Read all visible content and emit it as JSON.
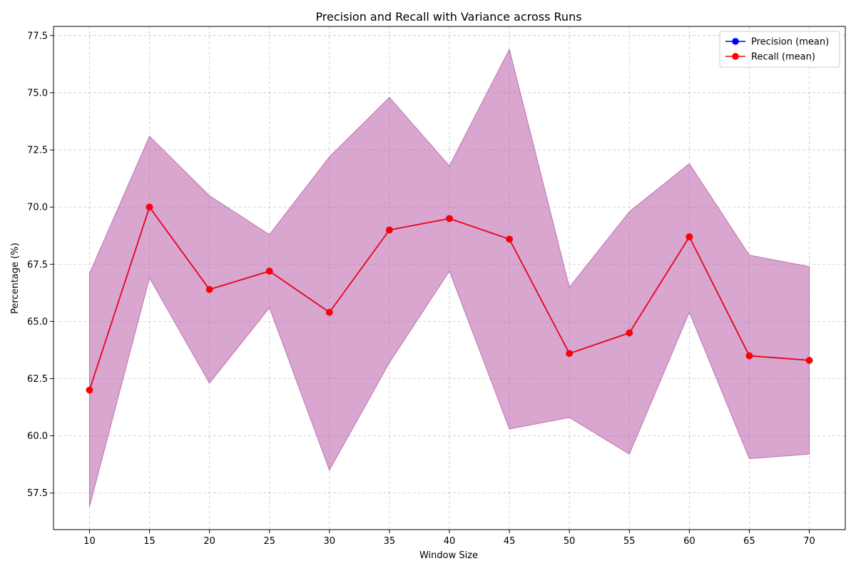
{
  "chart_data": {
    "type": "line",
    "title": "Precision and Recall with Variance across Runs",
    "xlabel": "Window Size",
    "ylabel": "Percentage (%)",
    "x": [
      10,
      15,
      20,
      25,
      30,
      35,
      40,
      45,
      50,
      55,
      60,
      65,
      70
    ],
    "xticks": [
      "10",
      "15",
      "20",
      "25",
      "30",
      "35",
      "40",
      "45",
      "50",
      "55",
      "60",
      "65",
      "70"
    ],
    "yticks": [
      "57.5",
      "60.0",
      "62.5",
      "65.0",
      "67.5",
      "70.0",
      "72.5",
      "75.0",
      "77.5"
    ],
    "xlim": [
      7,
      73
    ],
    "ylim": [
      55.9,
      77.9
    ],
    "grid": true,
    "legend_position": "top-right",
    "series": [
      {
        "name": "Precision (mean)",
        "color": "#0000ff",
        "values": [
          62.0,
          70.0,
          66.4,
          67.2,
          65.4,
          69.0,
          69.5,
          68.6,
          63.6,
          64.5,
          68.7,
          63.5,
          63.3
        ]
      },
      {
        "name": "Recall (mean)",
        "color": "#ff0000",
        "values": [
          62.0,
          70.0,
          66.4,
          67.2,
          65.4,
          69.0,
          69.5,
          68.6,
          63.6,
          64.5,
          68.7,
          63.5,
          63.3
        ]
      }
    ],
    "variance_band": {
      "color": "#b85da8",
      "upper": [
        67.1,
        73.1,
        70.5,
        68.8,
        72.2,
        74.8,
        71.8,
        76.9,
        66.5,
        69.8,
        71.9,
        67.9,
        67.4
      ],
      "lower": [
        56.9,
        66.9,
        62.3,
        65.6,
        58.5,
        63.2,
        67.2,
        60.3,
        60.8,
        59.2,
        65.4,
        59.0,
        59.2
      ]
    }
  }
}
